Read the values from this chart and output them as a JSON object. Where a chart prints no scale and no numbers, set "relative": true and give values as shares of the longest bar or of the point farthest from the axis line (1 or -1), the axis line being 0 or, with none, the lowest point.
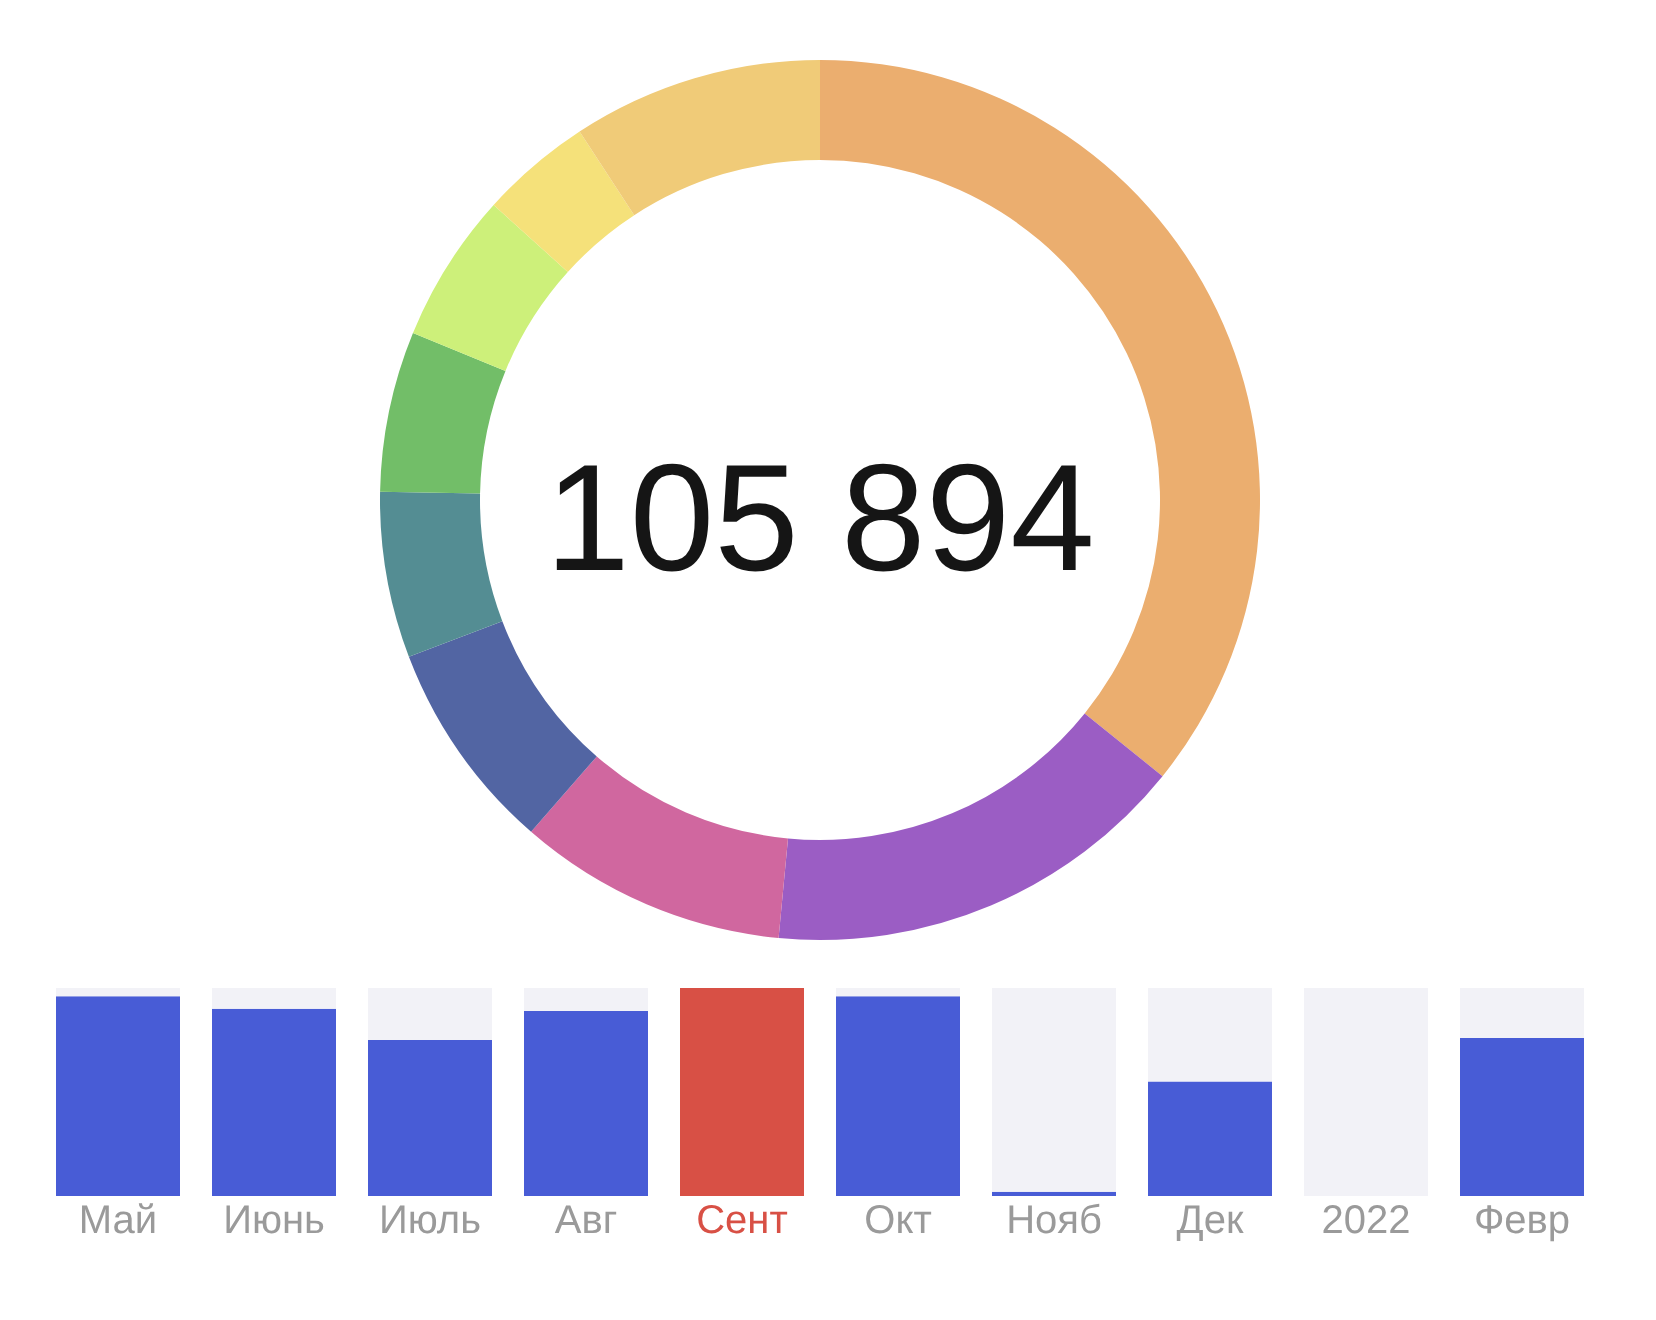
{
  "chart_data": [
    {
      "type": "donut",
      "categories": [
        null,
        null,
        null,
        null,
        null,
        null,
        null,
        null,
        null
      ],
      "values": [
        35.8,
        15.7,
        9.9,
        7.8,
        6.1,
        5.9,
        5.5,
        4.1,
        9.2
      ],
      "colors": [
        "#ebae6f",
        "#9b5dc4",
        "#d0679f",
        "#5265a3",
        "#548d93",
        "#72be68",
        "#cdf07a",
        "#f5e17a",
        "#f0cb78"
      ],
      "annotations": [
        "105 894"
      ],
      "legend": false
    },
    {
      "type": "bar",
      "relative": true,
      "stacked": true,
      "grid": false,
      "categories": [
        "Май",
        "Июнь",
        "Июль",
        "Авг",
        "Сент",
        "Окт",
        "Нояб",
        "Дек",
        "2022",
        "Февр"
      ],
      "series": [
        {
          "color": "#485cd6",
          "colors": [
            "#485cd6",
            "#485cd6",
            "#485cd6",
            "#485cd6",
            "#d85045",
            "#485cd6",
            "#485cd6",
            "#485cd6",
            "#485cd6",
            "#485cd6"
          ],
          "values": [
            0.96,
            0.9,
            0.75,
            0.89,
            1.0,
            0.96,
            0.02,
            0.55,
            0,
            0.76
          ]
        },
        {
          "color": "#f2f2f7",
          "values": [
            0.04,
            0.1,
            0.25,
            0.11,
            0,
            0.04,
            0.98,
            0.45,
            1,
            0.24
          ]
        }
      ]
    }
  ]
}
